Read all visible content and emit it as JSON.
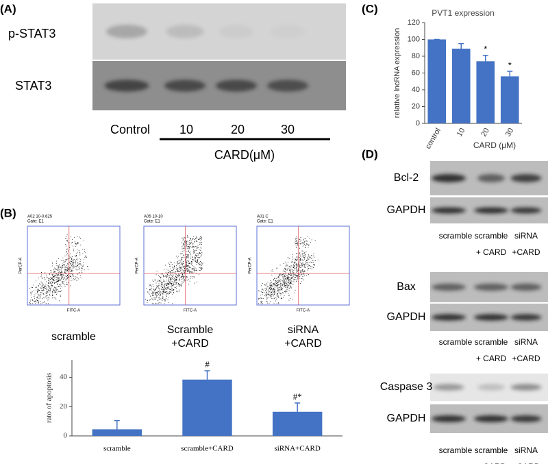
{
  "panel_a": {
    "label": "(A)",
    "rows": [
      "p-STAT3",
      "STAT3"
    ],
    "lanes": [
      "Control",
      "10",
      "20",
      "30"
    ],
    "treatment": "CARD(μM)"
  },
  "panel_b": {
    "label": "(B)",
    "plots": [
      {
        "header": "A02 10-0.625",
        "gate": "Gate: E1",
        "caption": [
          "scramble"
        ]
      },
      {
        "header": "A05 10-10",
        "gate": "Gate: E1",
        "caption": [
          "Scramble",
          "+CARD"
        ]
      },
      {
        "header": "A01 C",
        "gate": "Gate: E1",
        "caption": [
          "siRNA",
          "+CARD"
        ]
      }
    ],
    "x_axis": "FITC-A",
    "y_axis": "PerCP-A"
  },
  "panel_c": {
    "label": "(C)"
  },
  "panel_d": {
    "label": "(D)",
    "blots": [
      {
        "rows": [
          "Bcl-2",
          "GAPDH"
        ]
      },
      {
        "rows": [
          "Bax",
          "GAPDH"
        ]
      },
      {
        "rows": [
          "Caspase 3",
          "GAPDH"
        ]
      }
    ],
    "lanes": [
      [
        "scramble"
      ],
      [
        "scramble",
        "+ CARD"
      ],
      [
        "siRNA",
        "+CARD"
      ]
    ]
  },
  "chart_data": [
    {
      "type": "bar",
      "title": "PVT1 expression",
      "ylabel": "relative lncRNA expression",
      "xlabel": "CARD (μM)",
      "categories": [
        "control",
        "10",
        "20",
        "30"
      ],
      "values": [
        100,
        89,
        74,
        56
      ],
      "errors": [
        0,
        6,
        7,
        6
      ],
      "annotations": [
        null,
        null,
        "*",
        "*"
      ],
      "color": "#4472c4",
      "ylim": [
        0,
        120
      ],
      "yticks": [
        0,
        20,
        40,
        60,
        80,
        100,
        120
      ]
    },
    {
      "type": "bar",
      "ylabel": "rato of apoptosis",
      "categories": [
        "scramble",
        "scramble+CARD",
        "siRNA+CARD"
      ],
      "values": [
        4.5,
        38.5,
        16.5
      ],
      "errors": [
        6,
        6,
        6
      ],
      "annotations": [
        null,
        "#",
        "#*"
      ],
      "color": "#4472c4",
      "ylim": [
        0,
        52
      ],
      "yticks": [
        0,
        20,
        40
      ]
    }
  ]
}
